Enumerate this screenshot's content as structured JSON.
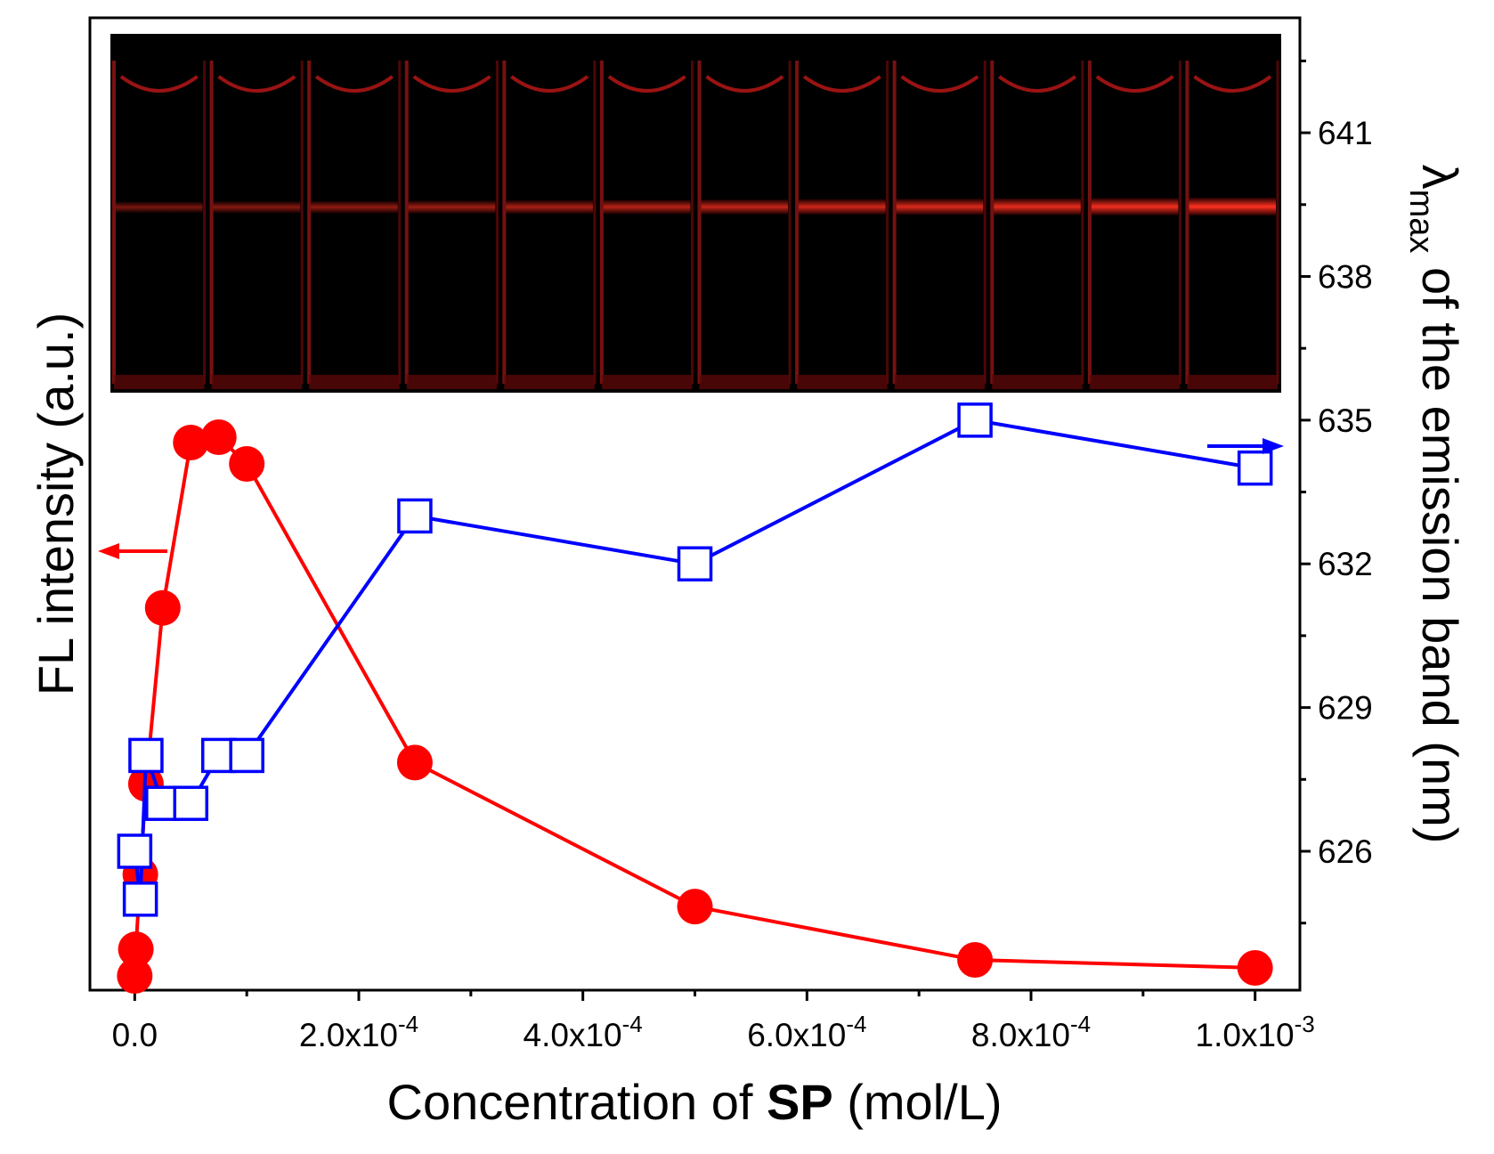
{
  "chart_data": {
    "type": "scatter",
    "xlabel": {
      "prefix": "Concentration of ",
      "bold": "SP",
      "suffix": " (mol/L)"
    },
    "ylabel_left": "FL intensity (a.u.)",
    "ylabel_right": {
      "symbol": "λ",
      "subscript": "max",
      "rest": " of the emission band (nm)"
    },
    "xlim": [
      -4e-05,
      0.00104
    ],
    "x_ticks": [
      {
        "value": 0.0,
        "label": "0.0"
      },
      {
        "value": 0.0002,
        "label": "2.0x10",
        "exp": "-4"
      },
      {
        "value": 0.0004,
        "label": "4.0x10",
        "exp": "-4"
      },
      {
        "value": 0.0006,
        "label": "6.0x10",
        "exp": "-4"
      },
      {
        "value": 0.0008,
        "label": "8.0x10",
        "exp": "-4"
      },
      {
        "value": 0.001,
        "label": "1.0x10",
        "exp": "-3"
      }
    ],
    "ylim_right": [
      623.1,
      643.4
    ],
    "y_ticks_right": [
      626,
      629,
      632,
      635,
      638,
      641
    ],
    "series": [
      {
        "axis": "left",
        "color": "#ff0000",
        "marker": "filled-circle",
        "connected": true,
        "x": [
          0,
          1e-06,
          5e-06,
          1e-05,
          2.5e-05,
          5e-05,
          7.5e-05,
          0.0001,
          0.00025,
          0.0005,
          0.00075,
          0.001
        ],
        "y": [
          0.0,
          0.05,
          0.19,
          0.36,
          0.69,
          1.0,
          1.01,
          0.96,
          0.4,
          0.13,
          0.03,
          0.015
        ]
      },
      {
        "axis": "right",
        "color": "#0000ff",
        "marker": "open-square",
        "connected": true,
        "x": [
          0,
          5e-06,
          1e-05,
          2.5e-05,
          5e-05,
          7.5e-05,
          0.0001,
          0.00025,
          0.0005,
          0.00075,
          0.001
        ],
        "y": [
          626,
          625,
          628,
          627,
          627,
          628,
          628,
          633,
          632,
          635,
          634
        ]
      }
    ],
    "arrows": [
      {
        "series": "left",
        "direction": "left",
        "color": "#ff0000"
      },
      {
        "series": "right",
        "direction": "right",
        "color": "#0000ff"
      }
    ],
    "inset": {
      "description": "photo of 12 cuvettes with red fluorescence",
      "count": 12
    }
  }
}
